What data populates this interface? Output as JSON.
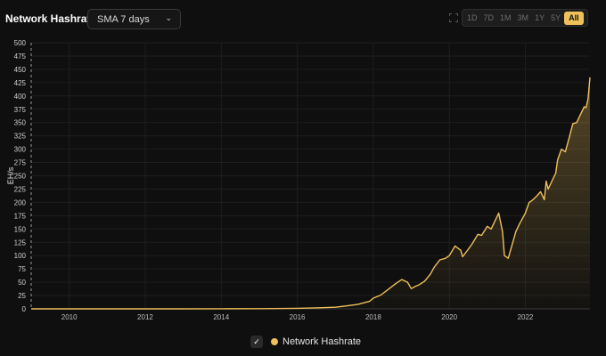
{
  "header": {
    "title": "Network Hashrate",
    "select_value": "SMA 7 days",
    "ranges": [
      "1D",
      "7D",
      "1M",
      "3M",
      "1Y",
      "5Y",
      "All"
    ],
    "active_range": "All"
  },
  "legend": {
    "label": "Network Hashrate",
    "color": "#f0c05a"
  },
  "chart_data": {
    "type": "area",
    "ylabel": "EH/s",
    "ylim": [
      0,
      500
    ],
    "y_ticks": [
      "0",
      "25",
      "50",
      "75",
      "100",
      "125",
      "150",
      "175",
      "200",
      "225",
      "250",
      "275",
      "300",
      "325",
      "350",
      "375",
      "400",
      "425",
      "450",
      "475",
      "500"
    ],
    "x_ticks": [
      "2010",
      "2012",
      "2014",
      "2016",
      "2018",
      "2020",
      "2022"
    ],
    "xlim": [
      2009.0,
      2023.7
    ],
    "grid": true,
    "series": [
      {
        "name": "Network Hashrate",
        "color": "#f0c05a",
        "x": [
          2009.0,
          2013.0,
          2014.0,
          2015.0,
          2016.0,
          2016.5,
          2017.0,
          2017.3,
          2017.6,
          2017.9,
          2018.0,
          2018.2,
          2018.4,
          2018.6,
          2018.75,
          2018.9,
          2019.0,
          2019.1,
          2019.2,
          2019.35,
          2019.5,
          2019.6,
          2019.75,
          2019.9,
          2020.0,
          2020.15,
          2020.3,
          2020.35,
          2020.5,
          2020.6,
          2020.75,
          2020.85,
          2021.0,
          2021.1,
          2021.2,
          2021.3,
          2021.4,
          2021.45,
          2021.55,
          2021.65,
          2021.75,
          2021.85,
          2022.0,
          2022.1,
          2022.2,
          2022.3,
          2022.4,
          2022.5,
          2022.55,
          2022.6,
          2022.7,
          2022.8,
          2022.85,
          2022.95,
          2023.05,
          2023.15,
          2023.25,
          2023.35,
          2023.45,
          2023.55,
          2023.6,
          2023.65,
          2023.7
        ],
        "values": [
          0,
          0,
          0.1,
          0.4,
          1,
          1.8,
          3,
          5.5,
          8.5,
          14,
          20,
          26,
          37,
          48,
          55,
          50,
          38,
          42,
          45,
          52,
          65,
          78,
          92,
          95,
          100,
          118,
          110,
          98,
          112,
          122,
          140,
          138,
          155,
          150,
          165,
          180,
          145,
          100,
          95,
          120,
          145,
          160,
          180,
          200,
          205,
          212,
          220,
          205,
          240,
          225,
          240,
          255,
          280,
          300,
          295,
          320,
          348,
          350,
          365,
          380,
          378,
          395,
          435
        ]
      }
    ]
  }
}
